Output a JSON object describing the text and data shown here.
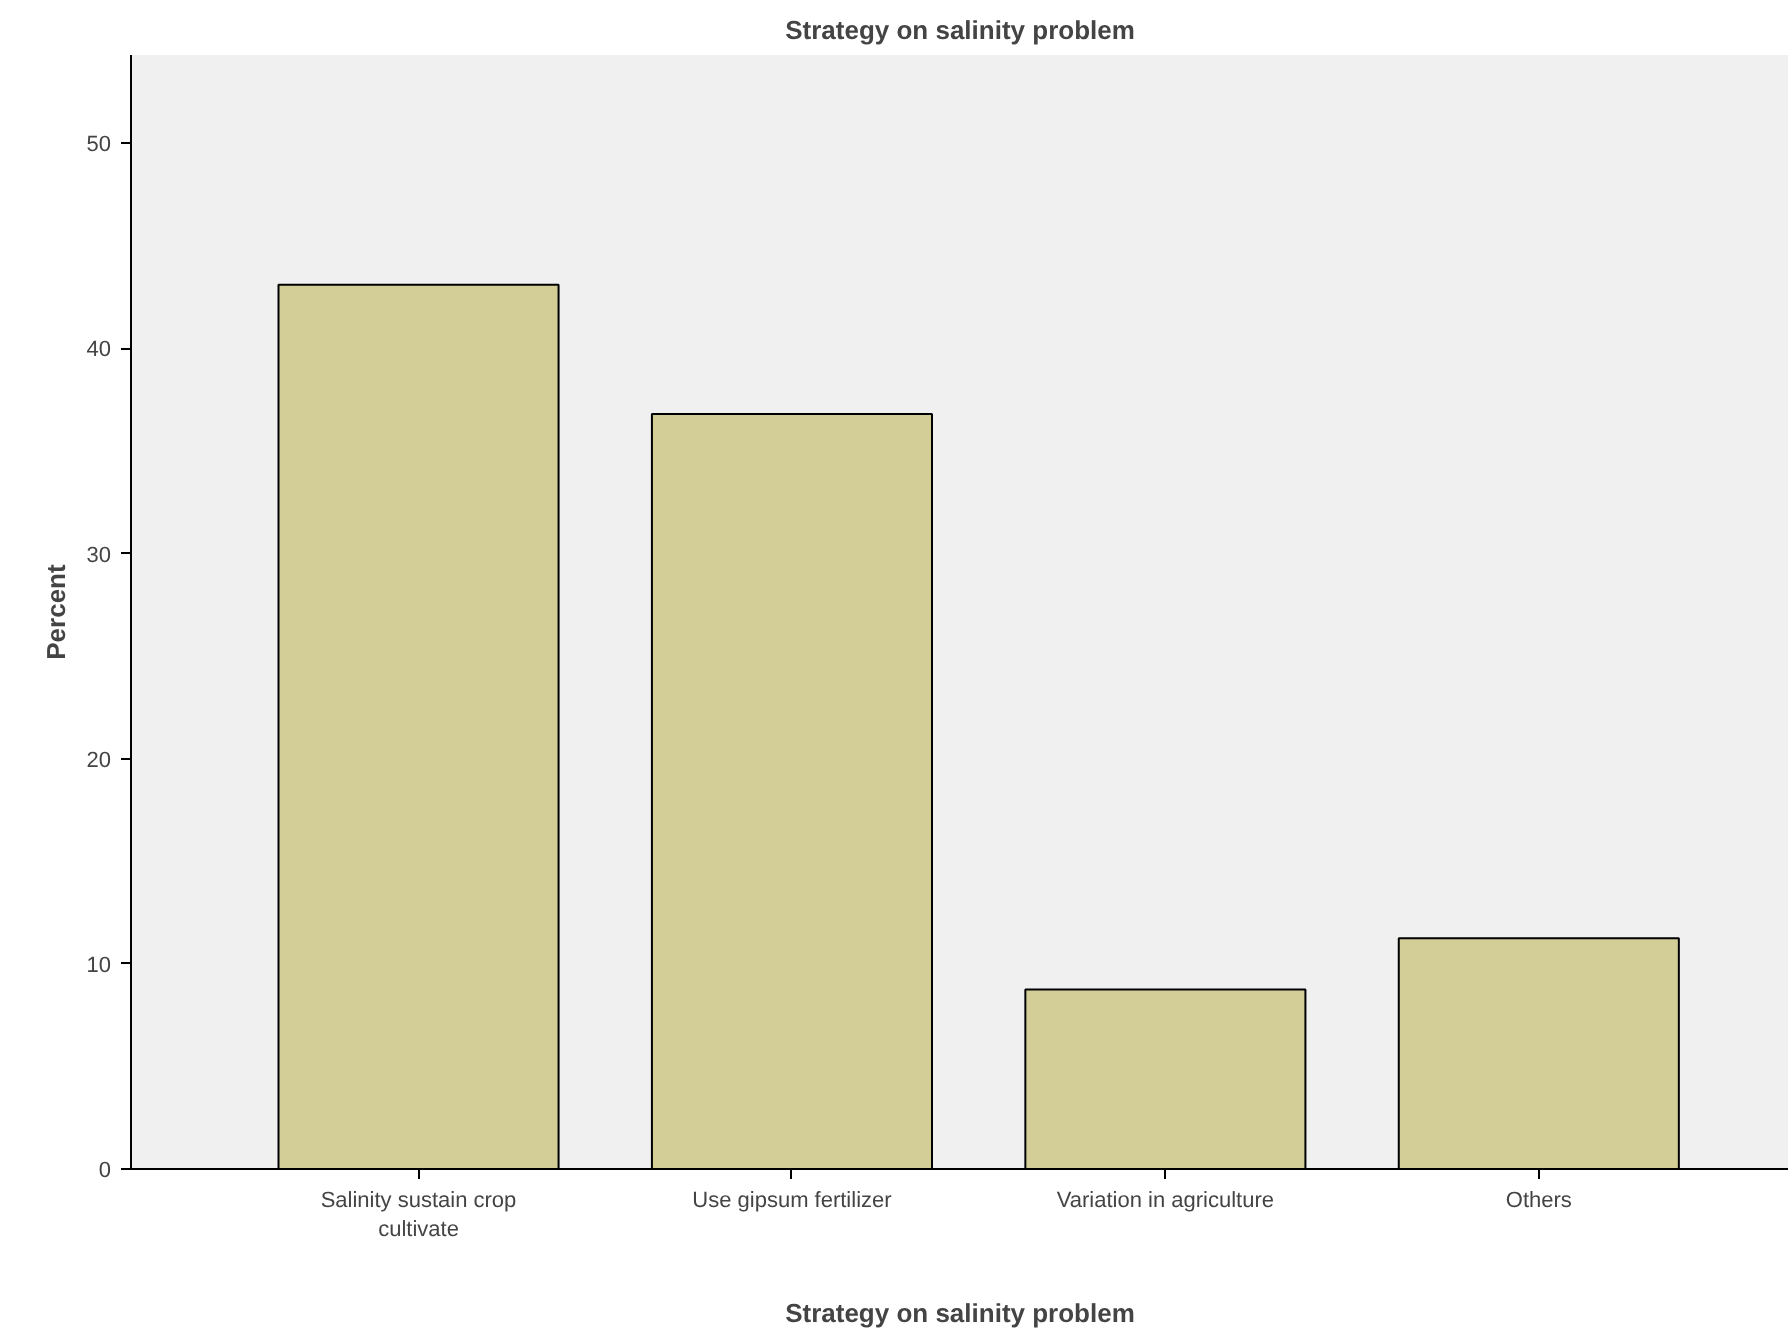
{
  "chart_data": {
    "type": "bar",
    "title": "Strategy on salinity problem",
    "xlabel": "Strategy on salinity problem",
    "ylabel": "Percent",
    "categories": [
      "Salinity sustain crop\ncultivate",
      "Use gipsum fertilizer",
      "Variation in agriculture",
      "Others"
    ],
    "values": [
      43.1,
      36.8,
      8.75,
      11.25
    ],
    "color": "#d3ce97",
    "ylim": [
      0,
      54.3
    ],
    "yticks": [
      0,
      10,
      20,
      30,
      40,
      50
    ],
    "grid": false
  }
}
